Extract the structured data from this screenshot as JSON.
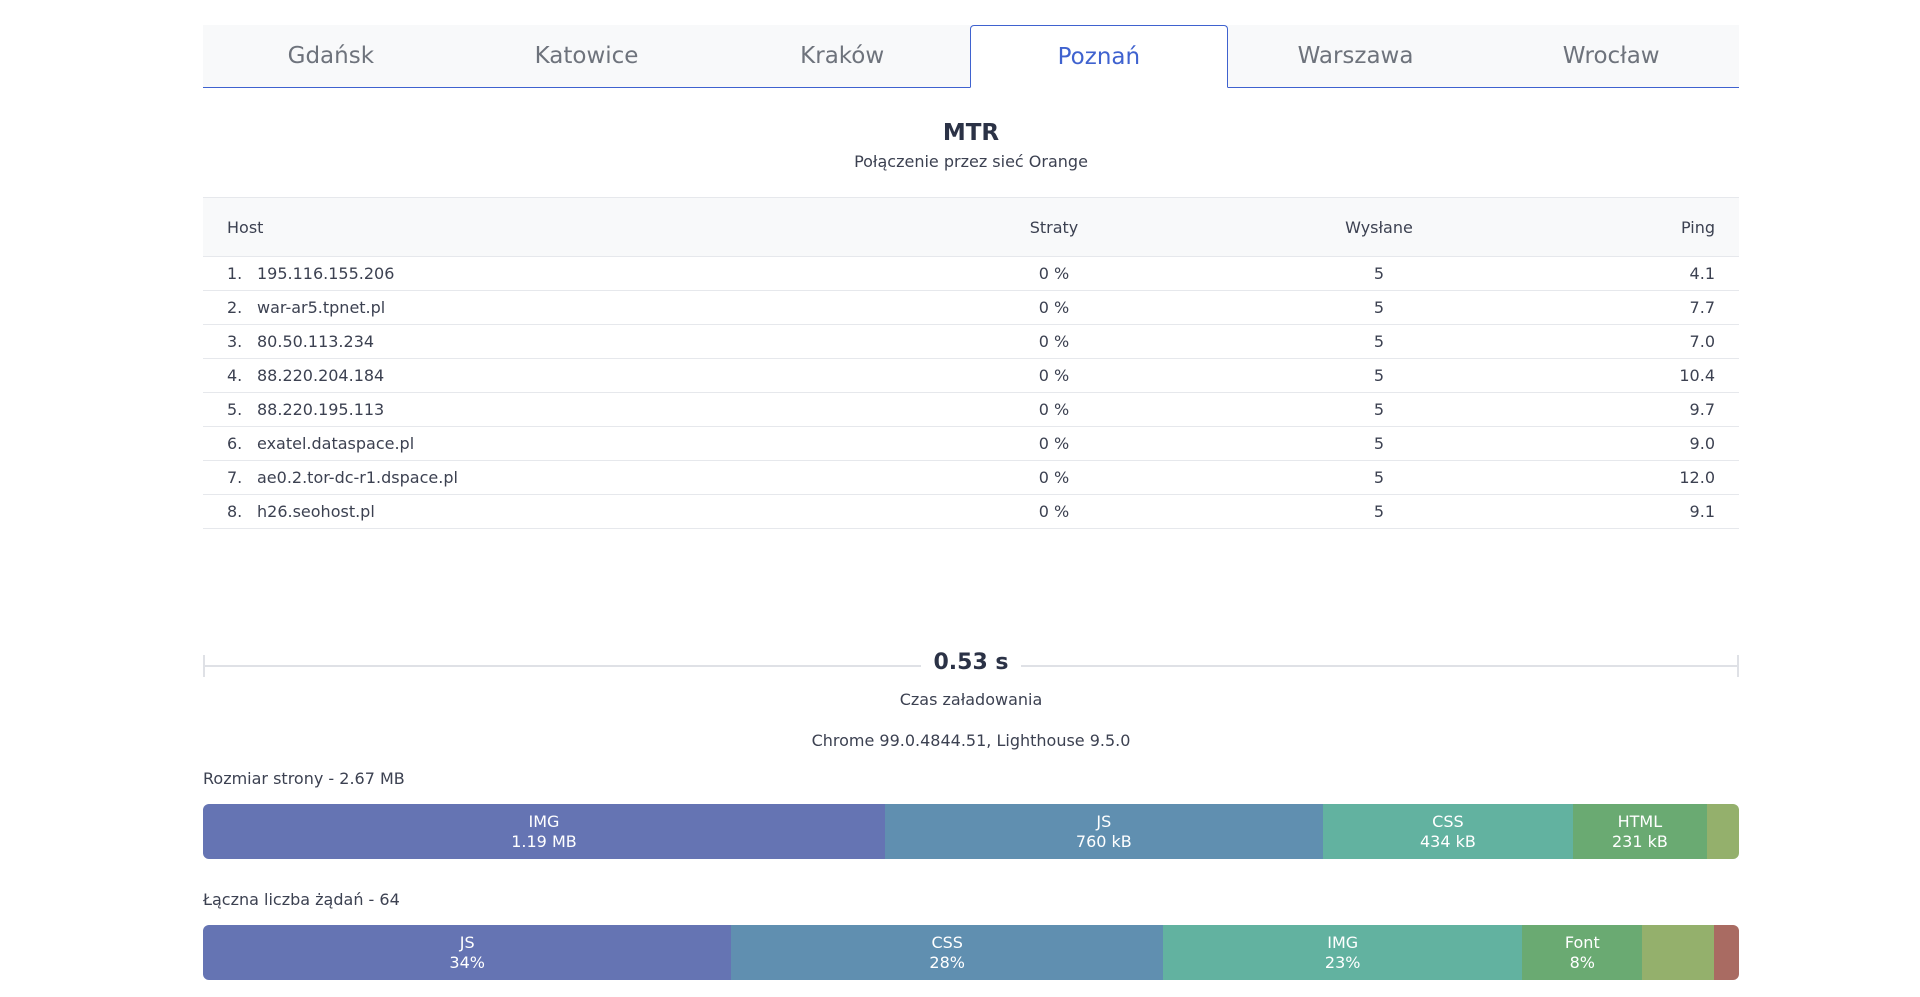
{
  "tabs": [
    "Gdańsk",
    "Katowice",
    "Kraków",
    "Poznań",
    "Warszawa",
    "Wrocław"
  ],
  "active_tab": "Poznań",
  "mtr": {
    "title": "MTR",
    "subtitle": "Połączenie przez sieć Orange",
    "columns": {
      "host": "Host",
      "loss": "Straty",
      "sent": "Wysłane",
      "ping": "Ping"
    },
    "rows": [
      {
        "n": "1.",
        "host": "195.116.155.206",
        "loss": "0 %",
        "sent": "5",
        "ping": "4.1"
      },
      {
        "n": "2.",
        "host": "war-ar5.tpnet.pl",
        "loss": "0 %",
        "sent": "5",
        "ping": "7.7"
      },
      {
        "n": "3.",
        "host": "80.50.113.234",
        "loss": "0 %",
        "sent": "5",
        "ping": "7.0"
      },
      {
        "n": "4.",
        "host": "88.220.204.184",
        "loss": "0 %",
        "sent": "5",
        "ping": "10.4"
      },
      {
        "n": "5.",
        "host": "88.220.195.113",
        "loss": "0 %",
        "sent": "5",
        "ping": "9.7"
      },
      {
        "n": "6.",
        "host": "exatel.dataspace.pl",
        "loss": "0 %",
        "sent": "5",
        "ping": "9.0"
      },
      {
        "n": "7.",
        "host": "ae0.2.tor-dc-r1.dspace.pl",
        "loss": "0 %",
        "sent": "5",
        "ping": "12.0"
      },
      {
        "n": "8.",
        "host": "h26.seohost.pl",
        "loss": "0 %",
        "sent": "5",
        "ping": "9.1"
      }
    ]
  },
  "load": {
    "value": "0.53 s",
    "label": "Czas załadowania",
    "browser": "Chrome 99.0.4844.51, Lighthouse 9.5.0"
  },
  "size": {
    "label": "Rozmiar strony - 2.67 MB",
    "segments": [
      {
        "name": "IMG",
        "value": "1.19 MB",
        "share": 0.444,
        "color": "#6574b3"
      },
      {
        "name": "JS",
        "value": "760 kB",
        "share": 0.285,
        "color": "#608fb0"
      },
      {
        "name": "CSS",
        "value": "434 kB",
        "share": 0.163,
        "color": "#62b2a0"
      },
      {
        "name": "HTML",
        "value": "231 kB",
        "share": 0.087,
        "color": "#6aaa72"
      },
      {
        "name": "",
        "value": "",
        "share": 0.021,
        "color": "#94b06c"
      }
    ]
  },
  "requests": {
    "label": "Łączna liczba żądań - 64",
    "segments": [
      {
        "name": "JS",
        "value": "34%",
        "share": 0.344,
        "color": "#6574b3"
      },
      {
        "name": "CSS",
        "value": "28%",
        "share": 0.281,
        "color": "#608fb0"
      },
      {
        "name": "IMG",
        "value": "23%",
        "share": 0.234,
        "color": "#62b2a0"
      },
      {
        "name": "Font",
        "value": "8%",
        "share": 0.078,
        "color": "#6aaa72"
      },
      {
        "name": "",
        "value": "",
        "share": 0.047,
        "color": "#94b06c"
      },
      {
        "name": "",
        "value": "",
        "share": 0.016,
        "color": "#a96b62"
      }
    ]
  }
}
